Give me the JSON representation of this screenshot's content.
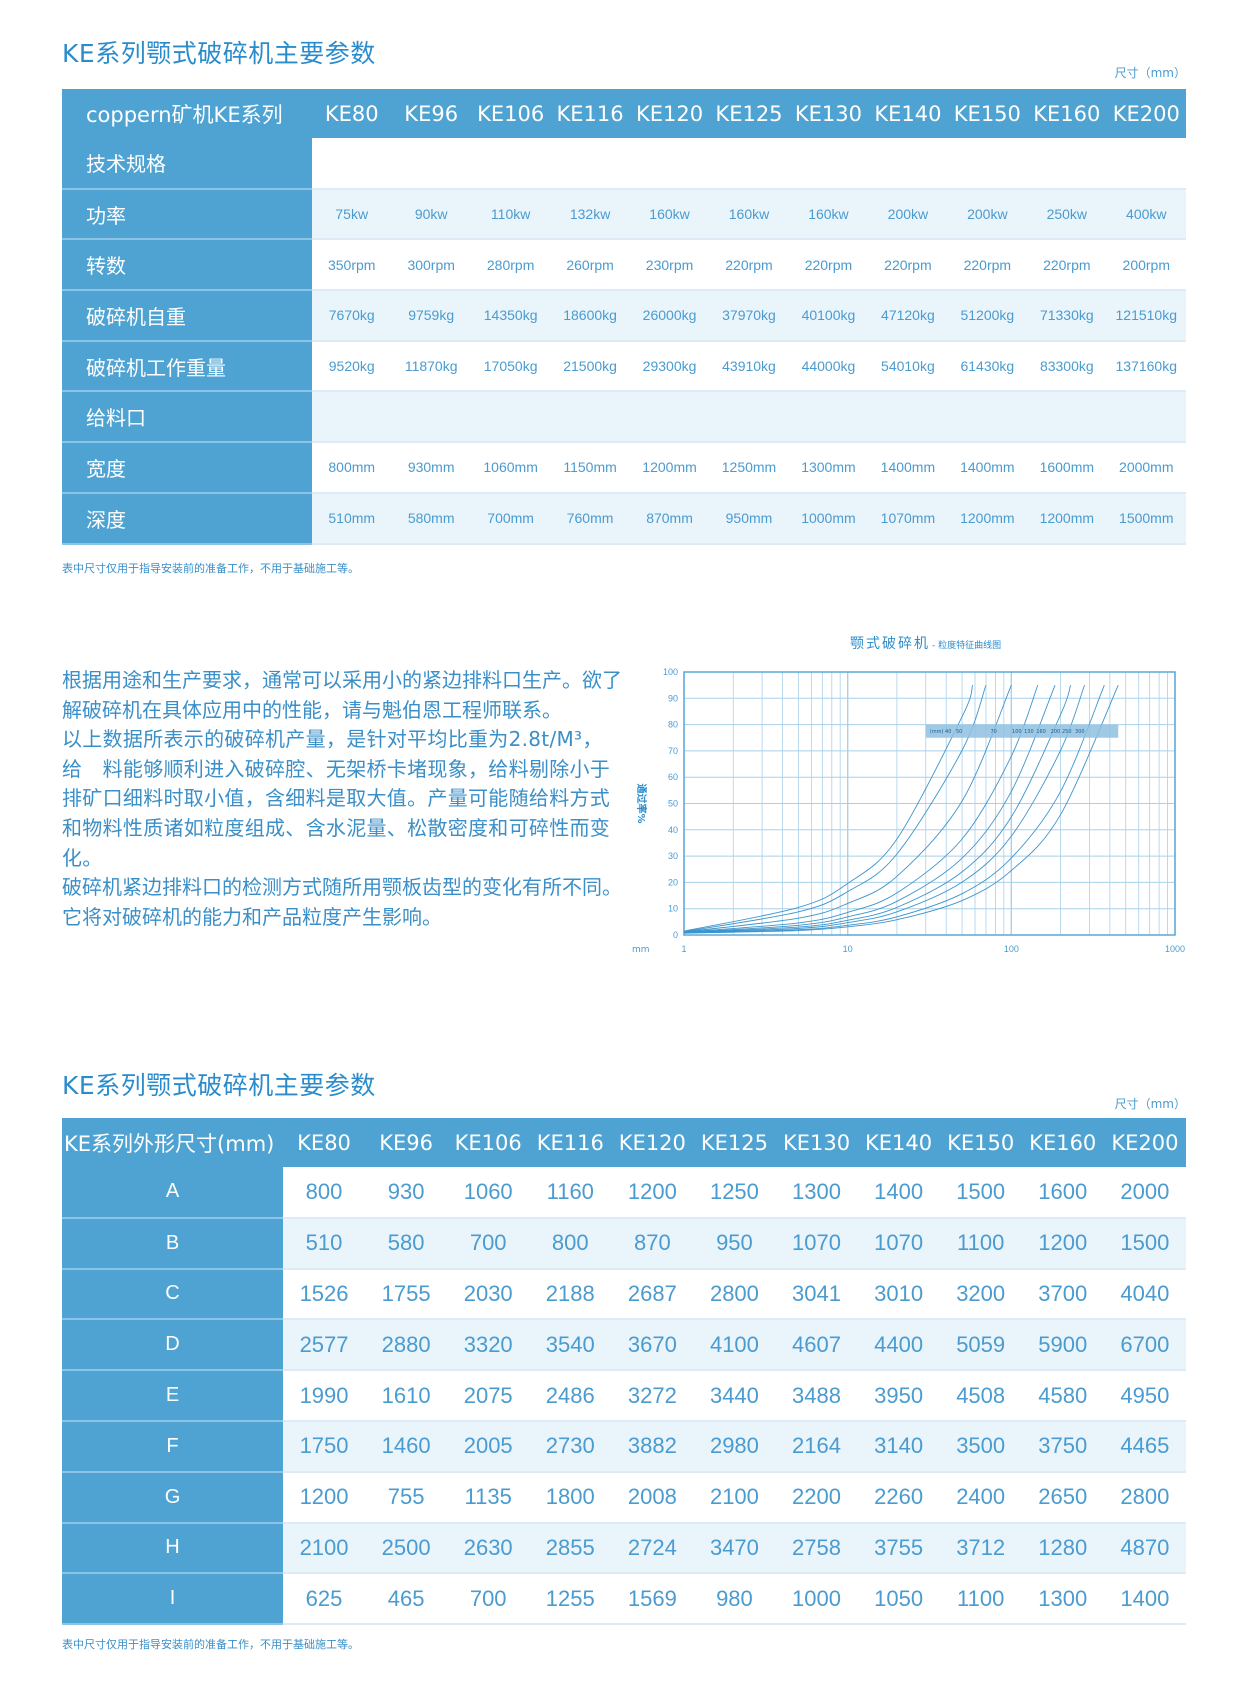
{
  "section1": {
    "title": "KE系列颚式破碎机主要参数",
    "unit": "尺寸（mm）",
    "header": [
      "coppern矿机KE系列",
      "KE80",
      "KE96",
      "KE106",
      "KE116",
      "KE120",
      "KE125",
      "KE130",
      "KE140",
      "KE150",
      "KE160",
      "KE200"
    ],
    "rows": [
      {
        "label": "技术规格",
        "values": []
      },
      {
        "label": "功率",
        "values": [
          "75kw",
          "90kw",
          "110kw",
          "132kw",
          "160kw",
          "160kw",
          "160kw",
          "200kw",
          "200kw",
          "250kw",
          "400kw"
        ]
      },
      {
        "label": "转数",
        "values": [
          "350rpm",
          "300rpm",
          "280rpm",
          "260rpm",
          "230rpm",
          "220rpm",
          "220rpm",
          "220rpm",
          "220rpm",
          "220rpm",
          "200rpm"
        ]
      },
      {
        "label": "破碎机自重",
        "values": [
          "7670kg",
          "9759kg",
          "14350kg",
          "18600kg",
          "26000kg",
          "37970kg",
          "40100kg",
          "47120kg",
          "51200kg",
          "71330kg",
          "121510kg"
        ]
      },
      {
        "label": "破碎机工作重量",
        "values": [
          "9520kg",
          "11870kg",
          "17050kg",
          "21500kg",
          "29300kg",
          "43910kg",
          "44000kg",
          "54010kg",
          "61430kg",
          "83300kg",
          "137160kg"
        ]
      },
      {
        "label": "给料口",
        "values": []
      },
      {
        "label": "宽度",
        "values": [
          "800mm",
          "930mm",
          "1060mm",
          "1150mm",
          "1200mm",
          "1250mm",
          "1300mm",
          "1400mm",
          "1400mm",
          "1600mm",
          "2000mm"
        ]
      },
      {
        "label": "深度",
        "values": [
          "510mm",
          "580mm",
          "700mm",
          "760mm",
          "870mm",
          "950mm",
          "1000mm",
          "1070mm",
          "1200mm",
          "1200mm",
          "1500mm"
        ]
      }
    ],
    "note": "表中尺寸仅用于指导安装前的准备工作，不用于基础施工等。"
  },
  "paragraphs": [
    "根据用途和生产要求，通常可以采用小的紧边排料口生产。欲了解破碎机在具体应用中的性能，请与魁伯恩工程师联系。",
    "以上数据所表示的破碎机产量，是针对平均比重为2.8t/M³，给　料能够顺利进入破碎腔、无架桥卡堵现象，给料剔除小于排矿口细料时取小值，含细料是取大值。产量可能随给料方式和物料性质诸如粒度组成、含水泥量、松散密度和可碎性而变化。",
    "破碎机紧边排料口的检测方式随所用颚板齿型的变化有所不同。它将对破碎机的能力和产品粒度产生影响。"
  ],
  "chart_data": {
    "type": "line",
    "title": "颚式破碎机",
    "subtitle": "- 粒度特征曲线图",
    "xlabel": "mm",
    "ylabel": "通过率%",
    "xscale": "log",
    "xlim": [
      1,
      1000
    ],
    "ylim": [
      0,
      100
    ],
    "xticks": [
      "1",
      "10",
      "100",
      "1000"
    ],
    "yticks": [
      "0",
      "10",
      "20",
      "30",
      "40",
      "50",
      "60",
      "70",
      "80",
      "90",
      "100"
    ],
    "grid": true,
    "legend_unit": "(mm)",
    "line_color": "#3d94cc",
    "grid_color": "#a9d0ea",
    "series": [
      {
        "name": "40",
        "points": [
          [
            1,
            1.5
          ],
          [
            5,
            10.5
          ],
          [
            10,
            19.6
          ],
          [
            20,
            36.5
          ],
          [
            50,
            83
          ],
          [
            58,
            95
          ]
        ]
      },
      {
        "name": "50",
        "points": [
          [
            1,
            1.3
          ],
          [
            5,
            8.8
          ],
          [
            10,
            16.5
          ],
          [
            20,
            30.8
          ],
          [
            50,
            70.2
          ],
          [
            70,
            95
          ]
        ]
      },
      {
        "name": "70",
        "points": [
          [
            1,
            1.2
          ],
          [
            5,
            6.4
          ],
          [
            10,
            12
          ],
          [
            20,
            22.3
          ],
          [
            50,
            50.9
          ],
          [
            100,
            95
          ]
        ]
      },
      {
        "name": "100",
        "points": [
          [
            1,
            1.1
          ],
          [
            5,
            4.6
          ],
          [
            10,
            8.6
          ],
          [
            20,
            16
          ],
          [
            50,
            36.5
          ],
          [
            100,
            68
          ],
          [
            145,
            95
          ]
        ]
      },
      {
        "name": "130",
        "points": [
          [
            1,
            1
          ],
          [
            5,
            3.7
          ],
          [
            10,
            6.9
          ],
          [
            20,
            12.8
          ],
          [
            50,
            29.2
          ],
          [
            100,
            54.6
          ],
          [
            185,
            95
          ]
        ]
      },
      {
        "name": "160",
        "points": [
          [
            1,
            1
          ],
          [
            5,
            3
          ],
          [
            10,
            5.6
          ],
          [
            20,
            10.5
          ],
          [
            50,
            24
          ],
          [
            100,
            44.9
          ],
          [
            200,
            83.8
          ],
          [
            230,
            95
          ]
        ]
      },
      {
        "name": "200",
        "points": [
          [
            1,
            0.9
          ],
          [
            5,
            2.5
          ],
          [
            10,
            4.7
          ],
          [
            20,
            8.8
          ],
          [
            50,
            20.1
          ],
          [
            100,
            37.6
          ],
          [
            200,
            70.2
          ],
          [
            280,
            95
          ]
        ]
      },
      {
        "name": "250",
        "points": [
          [
            1,
            0.8
          ],
          [
            5,
            2
          ],
          [
            10,
            3.7
          ],
          [
            20,
            6.9
          ],
          [
            50,
            15.7
          ],
          [
            100,
            29.3
          ],
          [
            200,
            54.6
          ],
          [
            370,
            95
          ]
        ]
      },
      {
        "name": "300",
        "points": [
          [
            1,
            0.7
          ],
          [
            5,
            1.7
          ],
          [
            10,
            3.1
          ],
          [
            20,
            5.8
          ],
          [
            50,
            13.1
          ],
          [
            100,
            24.5
          ],
          [
            200,
            45.8
          ],
          [
            450,
            95
          ]
        ]
      }
    ]
  },
  "section2": {
    "title": "KE系列颚式破碎机主要参数",
    "unit": "尺寸（mm）",
    "header": [
      "KE系列外形尺寸(mm)",
      "KE80",
      "KE96",
      "KE106",
      "KE116",
      "KE120",
      "KE125",
      "KE130",
      "KE140",
      "KE150",
      "KE160",
      "KE200"
    ],
    "rows": [
      {
        "label": "A",
        "values": [
          "800",
          "930",
          "1060",
          "1160",
          "1200",
          "1250",
          "1300",
          "1400",
          "1500",
          "1600",
          "2000"
        ]
      },
      {
        "label": "B",
        "values": [
          "510",
          "580",
          "700",
          "800",
          "870",
          "950",
          "1070",
          "1070",
          "1100",
          "1200",
          "1500"
        ]
      },
      {
        "label": "C",
        "values": [
          "1526",
          "1755",
          "2030",
          "2188",
          "2687",
          "2800",
          "3041",
          "3010",
          "3200",
          "3700",
          "4040"
        ]
      },
      {
        "label": "D",
        "values": [
          "2577",
          "2880",
          "3320",
          "3540",
          "3670",
          "4100",
          "4607",
          "4400",
          "5059",
          "5900",
          "6700"
        ]
      },
      {
        "label": "E",
        "values": [
          "1990",
          "1610",
          "2075",
          "2486",
          "3272",
          "3440",
          "3488",
          "3950",
          "4508",
          "4580",
          "4950"
        ]
      },
      {
        "label": "F",
        "values": [
          "1750",
          "1460",
          "2005",
          "2730",
          "3882",
          "2980",
          "2164",
          "3140",
          "3500",
          "3750",
          "4465"
        ]
      },
      {
        "label": "G",
        "values": [
          "1200",
          "755",
          "1135",
          "1800",
          "2008",
          "2100",
          "2200",
          "2260",
          "2400",
          "2650",
          "2800"
        ]
      },
      {
        "label": "H",
        "values": [
          "2100",
          "2500",
          "2630",
          "2855",
          "2724",
          "3470",
          "2758",
          "3755",
          "3712",
          "1280",
          "4870"
        ]
      },
      {
        "label": "I",
        "values": [
          "625",
          "465",
          "700",
          "1255",
          "1569",
          "980",
          "1000",
          "1050",
          "1100",
          "1300",
          "1400"
        ]
      }
    ],
    "note": "表中尺寸仅用于指导安装前的准备工作，不用于基础施工等。"
  }
}
